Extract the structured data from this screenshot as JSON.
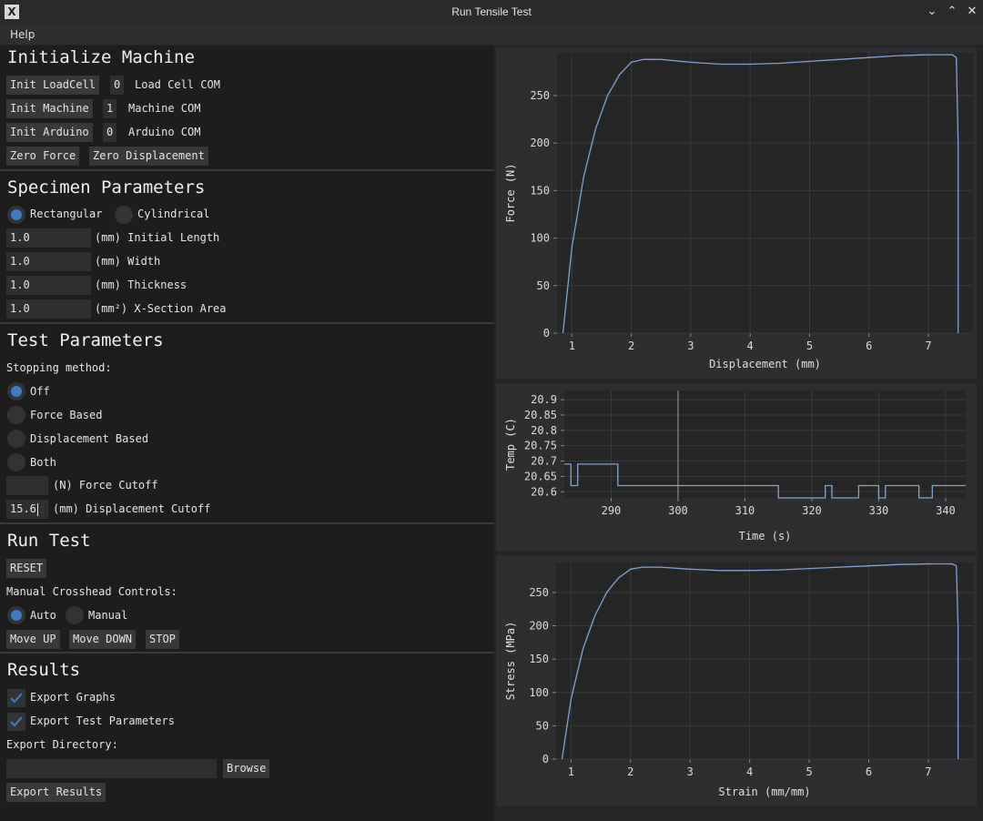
{
  "window": {
    "title": "Run Tensile Test",
    "app_icon": "X"
  },
  "menu": {
    "help": "Help"
  },
  "init": {
    "heading": "Initialize Machine",
    "init_loadcell": "Init LoadCell",
    "loadcell_com_value": "0",
    "loadcell_com_label": "Load Cell COM",
    "init_machine": "Init Machine",
    "machine_com_value": "1",
    "machine_com_label": "Machine COM",
    "init_arduino": "Init Arduino",
    "arduino_com_value": "0",
    "arduino_com_label": "Arduino COM",
    "zero_force": "Zero Force",
    "zero_displacement": "Zero Displacement"
  },
  "specimen": {
    "heading": "Specimen Parameters",
    "rectangular": "Rectangular",
    "cylindrical": "Cylindrical",
    "selected": "Rectangular",
    "fields": [
      {
        "value": "1.0",
        "label": "(mm) Initial Length"
      },
      {
        "value": "1.0",
        "label": "(mm) Width"
      },
      {
        "value": "1.0",
        "label": "(mm) Thickness"
      },
      {
        "value": "1.0",
        "label": "(mm²) X-Section Area"
      }
    ]
  },
  "test": {
    "heading": "Test Parameters",
    "stopping_label": "Stopping method:",
    "methods": [
      "Off",
      "Force Based",
      "Displacement Based",
      "Both"
    ],
    "selected_method": "Off",
    "force_cutoff_value": "",
    "force_cutoff_label": "(N) Force Cutoff",
    "disp_cutoff_value": "15.6",
    "disp_cutoff_label": "(mm) Displacement Cutoff"
  },
  "run": {
    "heading": "Run Test",
    "reset": "RESET",
    "manual_label": "Manual Crosshead Controls:",
    "auto": "Auto",
    "manual": "Manual",
    "selected": "Auto",
    "move_up": "Move UP",
    "move_down": "Move DOWN",
    "stop": "STOP"
  },
  "results": {
    "heading": "Results",
    "export_graphs": "Export Graphs",
    "export_graphs_checked": true,
    "export_params": "Export Test Parameters",
    "export_params_checked": true,
    "export_dir_label": "Export Directory:",
    "export_dir_value": "",
    "browse": "Browse",
    "export_results": "Export Results"
  },
  "colors": {
    "accent": "#3f7ac4",
    "line": "#7fa3d8"
  },
  "chart_data": [
    {
      "type": "line",
      "xlabel": "Displacement (mm)",
      "ylabel": "Force (N)",
      "xlim": [
        0.75,
        7.75
      ],
      "ylim": [
        0,
        295
      ],
      "xticks": [
        1,
        2,
        3,
        4,
        5,
        6,
        7
      ],
      "yticks": [
        0,
        50,
        100,
        150,
        200,
        250
      ],
      "grid": true,
      "series": [
        {
          "x": [
            0.85,
            1.0,
            1.2,
            1.4,
            1.6,
            1.8,
            2.0,
            2.2,
            2.5,
            3.0,
            3.5,
            4.0,
            4.5,
            5.0,
            5.5,
            6.0,
            6.5,
            7.0,
            7.4,
            7.47,
            7.5,
            7.5
          ],
          "y": [
            0,
            90,
            165,
            215,
            250,
            272,
            285,
            288,
            288,
            285,
            283,
            283,
            284,
            286,
            288,
            290,
            292,
            293,
            293,
            290,
            200,
            0
          ]
        }
      ]
    },
    {
      "type": "line",
      "xlabel": "Time (s)",
      "ylabel": "Temp (C)",
      "xlim": [
        283,
        343
      ],
      "ylim": [
        20.58,
        20.93
      ],
      "xticks": [
        290,
        300,
        310,
        320,
        330,
        340
      ],
      "yticks": [
        20.6,
        20.65,
        20.7,
        20.75,
        20.8,
        20.85,
        20.9
      ],
      "grid": true,
      "vline": 300,
      "series": [
        {
          "x": [
            283,
            284,
            284,
            285,
            285,
            291,
            291,
            315,
            315,
            322,
            322,
            323,
            323,
            327,
            327,
            330,
            330,
            331,
            331,
            336,
            336,
            338,
            338,
            343
          ],
          "y": [
            20.69,
            20.69,
            20.62,
            20.62,
            20.69,
            20.69,
            20.62,
            20.62,
            20.58,
            20.58,
            20.62,
            20.62,
            20.58,
            20.58,
            20.62,
            20.62,
            20.58,
            20.58,
            20.62,
            20.62,
            20.58,
            20.58,
            20.62,
            20.62
          ]
        }
      ]
    },
    {
      "type": "line",
      "xlabel": "Strain (mm/mm)",
      "ylabel": "Stress (MPa)",
      "xlim": [
        0.75,
        7.75
      ],
      "ylim": [
        0,
        295
      ],
      "xticks": [
        1,
        2,
        3,
        4,
        5,
        6,
        7
      ],
      "yticks": [
        0,
        50,
        100,
        150,
        200,
        250
      ],
      "grid": true,
      "series": [
        {
          "x": [
            0.85,
            1.0,
            1.2,
            1.4,
            1.6,
            1.8,
            2.0,
            2.2,
            2.5,
            3.0,
            3.5,
            4.0,
            4.5,
            5.0,
            5.5,
            6.0,
            6.5,
            7.0,
            7.4,
            7.47,
            7.5,
            7.5
          ],
          "y": [
            0,
            90,
            165,
            215,
            250,
            272,
            285,
            288,
            288,
            285,
            283,
            283,
            284,
            286,
            288,
            290,
            292,
            293,
            293,
            290,
            200,
            0
          ]
        }
      ]
    }
  ]
}
